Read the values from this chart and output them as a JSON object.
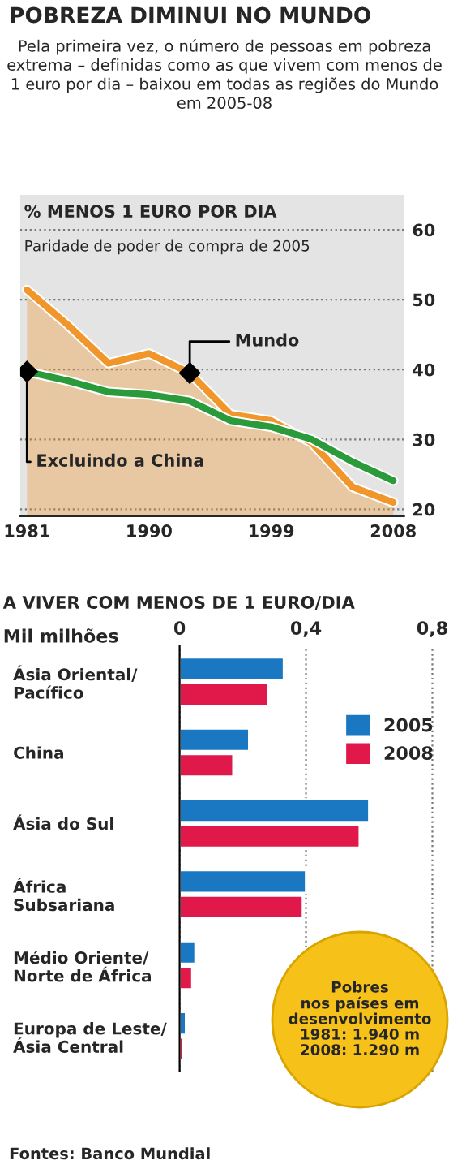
{
  "chart_data": [
    {
      "type": "line",
      "title": "% MENOS 1 EURO POR DIA",
      "subtitle": "Paridade de poder de compra de 2005",
      "annotations": [
        "POBREZA DIMINUI NO MUNDO",
        "Pela primeira vez, o número de pessoas em pobreza extrema – definidas como as que vivem com menos de 1 euro por dia – baixou em todas as regiões do Mundo em 2005-08"
      ],
      "x": [
        1981,
        1984,
        1987,
        1990,
        1993,
        1996,
        1999,
        2002,
        2005,
        2008
      ],
      "series": [
        {
          "name": "Mundo",
          "type": "area",
          "color": "#f0962a",
          "values": [
            51.4,
            46.4,
            40.9,
            42.3,
            39.5,
            33.6,
            32.7,
            29.5,
            23.2,
            21.0
          ]
        },
        {
          "name": "Excluindo a China",
          "type": "line",
          "color": "#2a9a3a",
          "values": [
            39.7,
            38.4,
            36.8,
            36.4,
            35.5,
            32.7,
            31.8,
            30.0,
            26.8,
            24.1
          ]
        }
      ],
      "xlim": [
        1980.5,
        2008.8
      ],
      "xticks": [
        1981,
        1990,
        1999,
        2008
      ],
      "ylim": [
        19,
        65
      ],
      "yticks": [
        20,
        30,
        40,
        50,
        60
      ],
      "grid": "y"
    },
    {
      "type": "bar",
      "orientation": "horizontal",
      "title": "A VIVER COM MENOS DE 1 EURO/DIA",
      "xlabel": "Mil milhões",
      "categories": [
        "Ásia Oriental/\nPacífico",
        "China",
        "Ásia do Sul",
        "África\nSubsariana",
        "Médio Oriente/\nNorte de África",
        "Europa de Leste/\nÁsia Central"
      ],
      "series": [
        {
          "name": "2005",
          "color": "#1a78c2",
          "values": [
            0.33,
            0.22,
            0.6,
            0.4,
            0.05,
            0.02
          ]
        },
        {
          "name": "2008",
          "color": "#e0194a",
          "values": [
            0.28,
            0.17,
            0.57,
            0.39,
            0.04,
            0.01
          ]
        }
      ],
      "xlim": [
        0,
        0.81
      ],
      "xticks": [
        0,
        {
          "value": 0.4,
          "label": "0,4"
        },
        {
          "value": 0.8,
          "label": "0,8"
        }
      ],
      "grid": "x",
      "legend": "right",
      "annotations": [
        "Pobres\nnos países em\ndesenvolvimento\n1981: 1.940 m\n2008: 1.290 m",
        "Fontes: Banco Mundial"
      ]
    }
  ]
}
